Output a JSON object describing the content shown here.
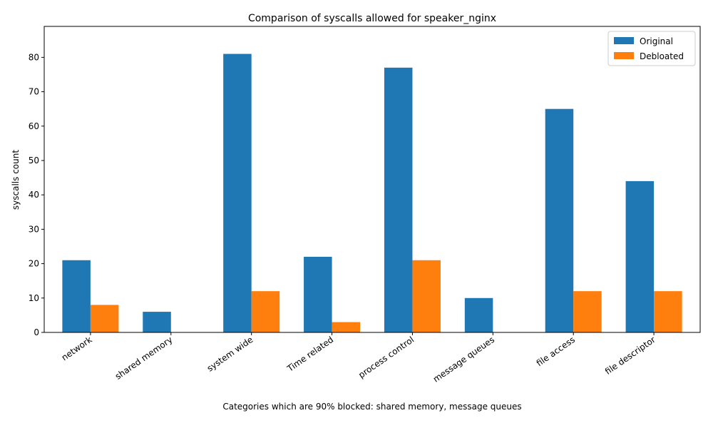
{
  "chart_data": {
    "type": "bar",
    "title": "Comparison of syscalls allowed for speaker_nginx",
    "xlabel": "Categories which are 90% blocked: shared memory, message queues",
    "ylabel": "syscalls count",
    "categories": [
      "network",
      "shared memory",
      "system wide",
      "Time related",
      "process control",
      "message queues",
      "file access",
      "file descriptor"
    ],
    "series": [
      {
        "name": "Original",
        "color": "#1f77b4",
        "values": [
          21,
          6,
          81,
          22,
          77,
          10,
          65,
          44
        ]
      },
      {
        "name": "Debloated",
        "color": "#ff7f0e",
        "values": [
          8,
          0,
          12,
          3,
          21,
          0,
          12,
          12
        ]
      }
    ],
    "ylim": [
      0,
      89
    ],
    "yticks": [
      0,
      10,
      20,
      30,
      40,
      50,
      60,
      70,
      80
    ],
    "grid": false,
    "legend": "top-right"
  }
}
